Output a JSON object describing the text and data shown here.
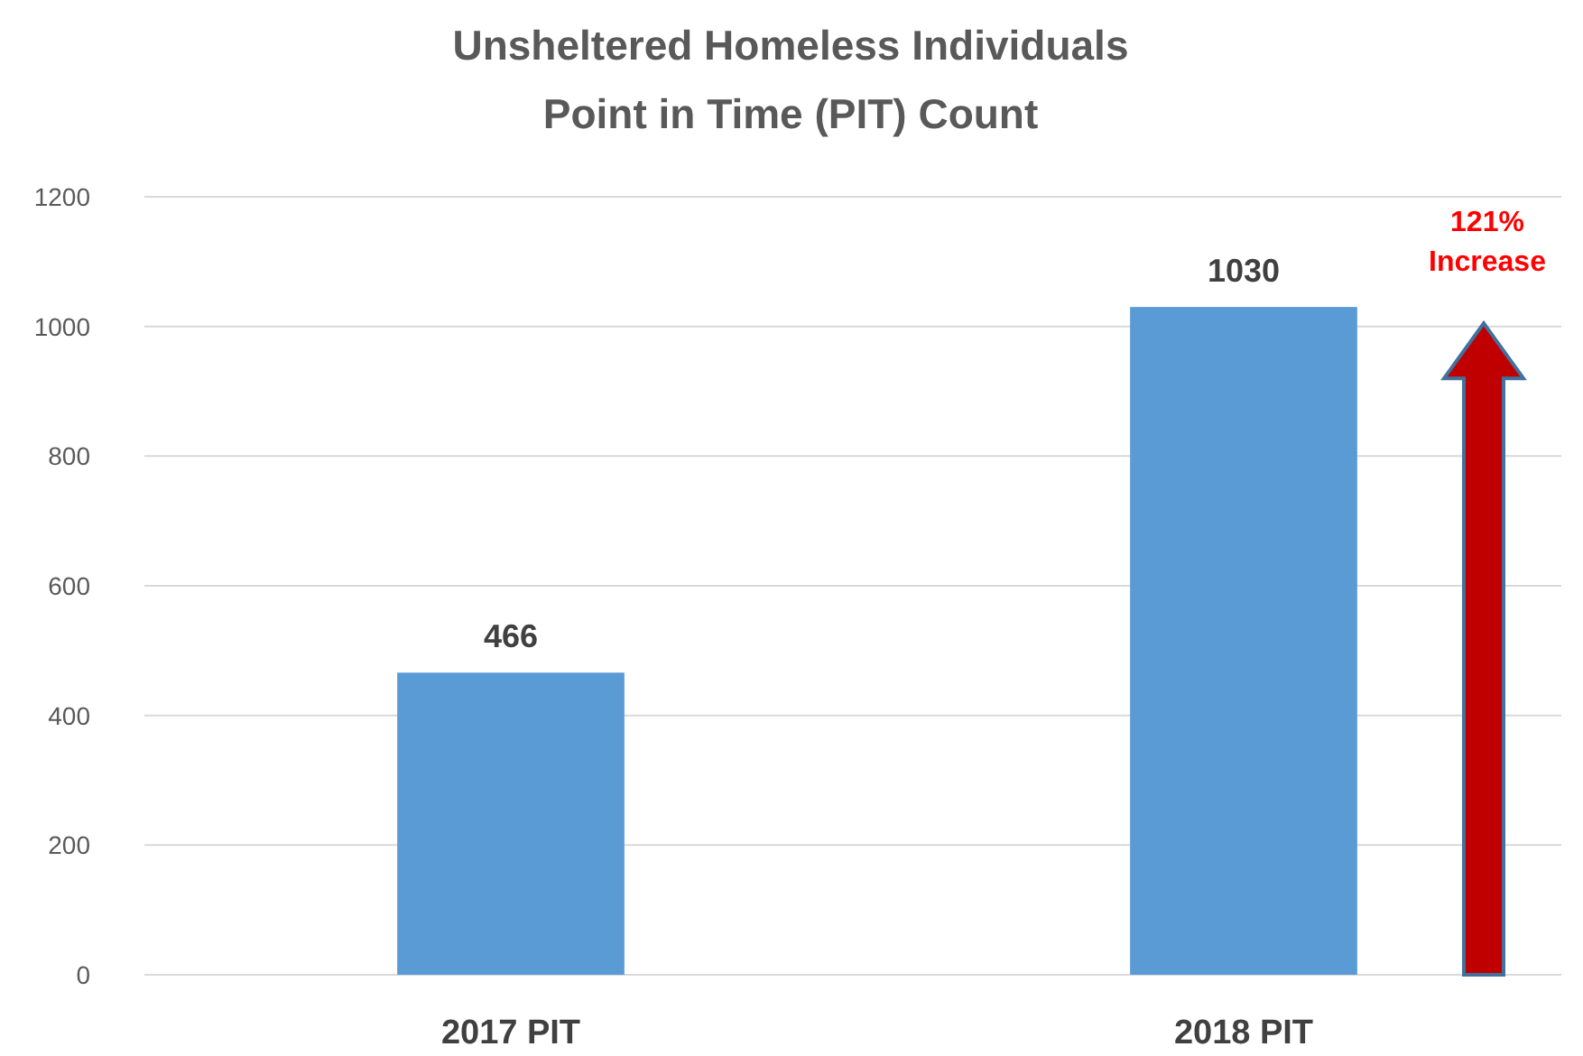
{
  "chart_data": {
    "type": "bar",
    "title": "Unsheltered Homeless Individuals\nPoint in Time (PIT) Count",
    "categories": [
      "2017 PIT",
      "2018 PIT"
    ],
    "values": [
      466,
      1030
    ],
    "color": "#5b9bd5",
    "ylim": [
      0,
      1200
    ],
    "yticks": [
      0,
      200,
      400,
      600,
      800,
      1000,
      1200
    ],
    "grid": "y",
    "data_labels": true,
    "annotations": [
      "121% Increase"
    ]
  }
}
